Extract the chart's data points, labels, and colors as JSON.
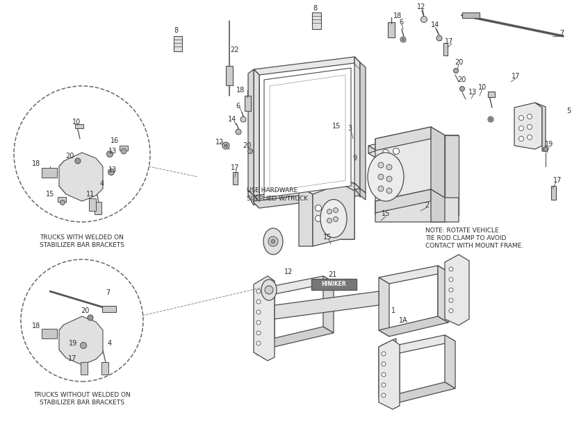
{
  "bg_color": "#ffffff",
  "line_color": "#4a4a4a",
  "fig_width": 8.23,
  "fig_height": 6.43,
  "dpi": 100,
  "text_color": "#2a2a2a",
  "note_text": "NOTE: ROTATE VEHICLE\nTIE ROD CLAMP TO AVOID\nCONTACT WITH MOUNT FRAME.",
  "label1_text": "TRUCKS WITH WELDED ON\nSTABILIZER BAR BRACKETS",
  "label2_text": "TRUCKS WITHOUT WELDED ON\nSTABILIZER BAR BRACKETS",
  "use_hw_text": "USE HARDWARE\nSUPPLIED W/TRUCK"
}
